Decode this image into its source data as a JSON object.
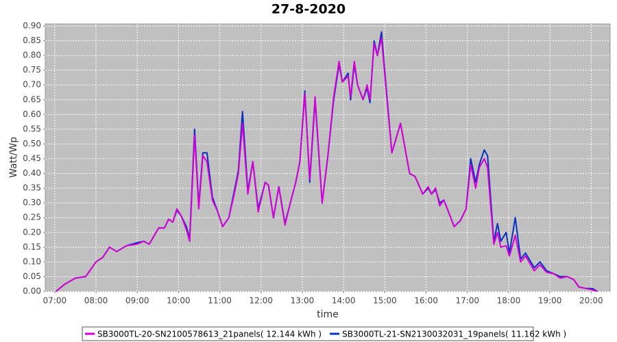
{
  "chart_data": {
    "type": "line",
    "title": "27-8-2020",
    "x_label": "time",
    "y_label": "Watt/Wp",
    "x": [
      7.03,
      7.25,
      7.5,
      7.75,
      8.0,
      8.16,
      8.33,
      8.5,
      8.74,
      8.99,
      9.16,
      9.29,
      9.52,
      9.66,
      9.76,
      9.86,
      9.96,
      10.07,
      10.19,
      10.27,
      10.39,
      10.49,
      10.59,
      10.69,
      10.82,
      10.95,
      11.07,
      11.22,
      11.35,
      11.45,
      11.55,
      11.68,
      11.8,
      11.93,
      12.1,
      12.18,
      12.3,
      12.43,
      12.58,
      12.71,
      12.84,
      12.94,
      13.06,
      13.18,
      13.31,
      13.48,
      13.62,
      13.76,
      13.89,
      13.97,
      14.11,
      14.17,
      14.26,
      14.34,
      14.47,
      14.57,
      14.64,
      14.74,
      14.82,
      14.92,
      15.02,
      15.17,
      15.38,
      15.6,
      15.73,
      15.92,
      16.05,
      16.13,
      16.23,
      16.33,
      16.43,
      16.68,
      16.83,
      16.97,
      17.08,
      17.2,
      17.29,
      17.41,
      17.49,
      17.64,
      17.73,
      17.81,
      17.94,
      18.02,
      18.16,
      18.29,
      18.41,
      18.62,
      18.76,
      18.92,
      19.09,
      19.25,
      19.42,
      19.58,
      19.7,
      19.87,
      20.03,
      20.15
    ],
    "series": [
      {
        "name": "SB3000TL-20-SN2100578613_21panels( 12.144 kWh )",
        "color": "#d400d4",
        "values": [
          0,
          0.025,
          0.045,
          0.05,
          0.1,
          0.115,
          0.15,
          0.135,
          0.155,
          0.16,
          0.17,
          0.16,
          0.215,
          0.215,
          0.245,
          0.235,
          0.28,
          0.255,
          0.21,
          0.17,
          0.53,
          0.28,
          0.46,
          0.44,
          0.31,
          0.27,
          0.22,
          0.25,
          0.33,
          0.4,
          0.57,
          0.33,
          0.44,
          0.27,
          0.37,
          0.36,
          0.25,
          0.355,
          0.225,
          0.3,
          0.37,
          0.44,
          0.67,
          0.38,
          0.66,
          0.3,
          0.46,
          0.66,
          0.78,
          0.71,
          0.73,
          0.66,
          0.78,
          0.7,
          0.65,
          0.7,
          0.65,
          0.84,
          0.8,
          0.86,
          0.7,
          0.47,
          0.57,
          0.4,
          0.39,
          0.33,
          0.355,
          0.33,
          0.35,
          0.29,
          0.31,
          0.22,
          0.24,
          0.28,
          0.43,
          0.35,
          0.42,
          0.45,
          0.42,
          0.16,
          0.2,
          0.15,
          0.155,
          0.12,
          0.19,
          0.1,
          0.12,
          0.07,
          0.09,
          0.065,
          0.06,
          0.045,
          0.05,
          0.04,
          0.015,
          0.01,
          0.005,
          0
        ]
      },
      {
        "name": "SB3000TL-21-SN2130032031_19panels( 11.162 kWh )",
        "color": "#0a2fc4",
        "values": [
          0,
          0.025,
          0.045,
          0.05,
          0.1,
          0.115,
          0.15,
          0.135,
          0.155,
          0.165,
          0.17,
          0.16,
          0.215,
          0.215,
          0.245,
          0.235,
          0.275,
          0.255,
          0.22,
          0.18,
          0.55,
          0.29,
          0.47,
          0.47,
          0.32,
          0.27,
          0.22,
          0.25,
          0.34,
          0.41,
          0.61,
          0.34,
          0.44,
          0.28,
          0.37,
          0.36,
          0.25,
          0.355,
          0.23,
          0.3,
          0.37,
          0.44,
          0.68,
          0.37,
          0.65,
          0.3,
          0.46,
          0.65,
          0.77,
          0.71,
          0.74,
          0.65,
          0.77,
          0.7,
          0.65,
          0.69,
          0.64,
          0.85,
          0.8,
          0.88,
          0.71,
          0.47,
          0.57,
          0.4,
          0.39,
          0.33,
          0.35,
          0.33,
          0.345,
          0.3,
          0.31,
          0.22,
          0.24,
          0.28,
          0.45,
          0.37,
          0.43,
          0.48,
          0.46,
          0.17,
          0.23,
          0.17,
          0.2,
          0.13,
          0.25,
          0.11,
          0.13,
          0.08,
          0.1,
          0.07,
          0.06,
          0.05,
          0.05,
          0.04,
          0.015,
          0.01,
          0.01,
          0
        ]
      }
    ],
    "xlim": [
      6.77,
      20.46
    ],
    "ylim": [
      0,
      0.907
    ],
    "xticks": [
      {
        "value": 7,
        "label": "07:00"
      },
      {
        "value": 8,
        "label": "08:00"
      },
      {
        "value": 9,
        "label": "09:00"
      },
      {
        "value": 10,
        "label": "10:00"
      },
      {
        "value": 11,
        "label": "11:00"
      },
      {
        "value": 12,
        "label": "12:00"
      },
      {
        "value": 13,
        "label": "13:00"
      },
      {
        "value": 14,
        "label": "14:00"
      },
      {
        "value": 15,
        "label": "15:00"
      },
      {
        "value": 16,
        "label": "16:00"
      },
      {
        "value": 17,
        "label": "17:00"
      },
      {
        "value": 18,
        "label": "18:00"
      },
      {
        "value": 19,
        "label": "19:00"
      },
      {
        "value": 20,
        "label": "20:00"
      }
    ],
    "yticks": [
      {
        "value": 0,
        "label": "0.00"
      },
      0.05,
      {
        "value": 0.1,
        "label": "0.10"
      },
      0.15,
      {
        "value": 0.2,
        "label": "0.20"
      },
      0.25,
      {
        "value": 0.3,
        "label": "0.30"
      },
      0.35,
      {
        "value": 0.4,
        "label": "0.40"
      },
      0.45,
      {
        "value": 0.5,
        "label": "0.50"
      },
      0.55,
      {
        "value": 0.6,
        "label": "0.60"
      },
      0.65,
      {
        "value": 0.7,
        "label": "0.70"
      },
      0.75,
      {
        "value": 0.8,
        "label": "0.80"
      },
      0.85,
      {
        "value": 0.9,
        "label": "0.90"
      }
    ],
    "grid": true,
    "legend": "bottom"
  }
}
